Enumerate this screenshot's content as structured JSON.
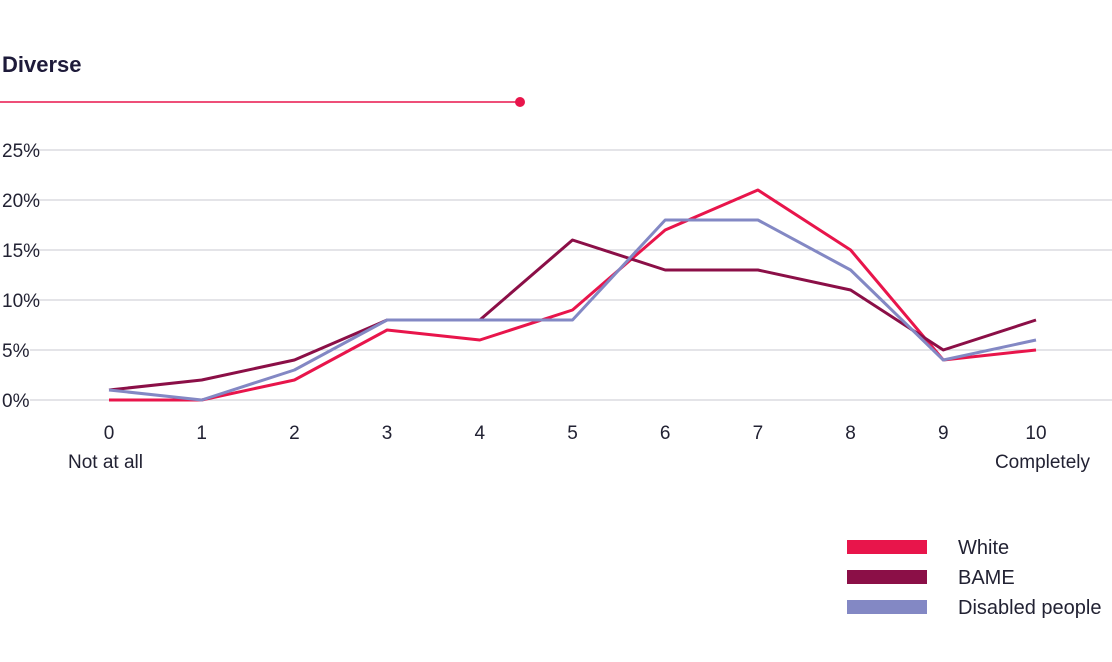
{
  "chart_data": {
    "type": "line",
    "title": "Diverse",
    "categories": [
      "0",
      "1",
      "2",
      "3",
      "4",
      "5",
      "6",
      "7",
      "8",
      "9",
      "10"
    ],
    "x_end_labels": {
      "left": "Not at all",
      "right": "Completely"
    },
    "y_ticks": [
      "0%",
      "5%",
      "10%",
      "15%",
      "20%",
      "25%"
    ],
    "ylim": [
      0,
      25
    ],
    "grid": true,
    "legend_position": "bottom-right",
    "series": [
      {
        "name": "White",
        "color": "#e8154b",
        "values": [
          0,
          0,
          2,
          7,
          6,
          9,
          17,
          21,
          15,
          4,
          5
        ]
      },
      {
        "name": "BAME",
        "color": "#8b0f47",
        "values": [
          1,
          2,
          4,
          8,
          8,
          16,
          13,
          13,
          11,
          5,
          8
        ]
      },
      {
        "name": "Disabled people",
        "color": "#8388c4",
        "values": [
          1,
          0,
          3,
          8,
          8,
          8,
          18,
          18,
          13,
          4,
          6
        ]
      }
    ],
    "accent_color": "#e8154b",
    "grid_color": "#c8c8d0"
  }
}
